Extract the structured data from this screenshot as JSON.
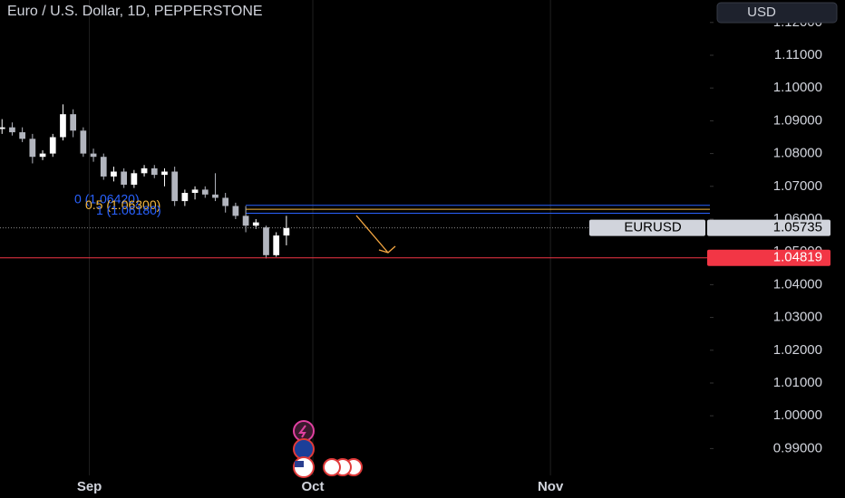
{
  "chart_data": {
    "type": "candlestick",
    "title": "Euro / U.S. Dollar, 1D, PEPPERSTONE",
    "currency": "USD",
    "symbol": "EURUSD",
    "x": [
      0,
      1,
      2,
      3,
      4,
      5,
      6,
      7,
      8,
      9,
      10,
      11,
      12,
      13,
      14,
      15,
      16,
      17,
      18,
      19,
      20,
      21,
      22,
      23,
      24,
      25,
      26,
      27,
      28
    ],
    "open": [
      1.0875,
      1.088,
      1.0865,
      1.0845,
      1.079,
      1.08,
      1.085,
      1.092,
      1.087,
      1.08,
      1.079,
      1.073,
      1.0745,
      1.0705,
      1.074,
      1.0755,
      1.0735,
      1.0745,
      1.0655,
      1.068,
      1.069,
      1.0675,
      1.0665,
      1.064,
      1.061,
      1.058,
      1.0575,
      1.049,
      1.055
    ],
    "high": [
      1.0905,
      1.0895,
      1.088,
      1.086,
      1.081,
      1.086,
      1.095,
      1.0935,
      1.088,
      1.0815,
      1.08,
      1.076,
      1.0755,
      1.075,
      1.0765,
      1.0765,
      1.0755,
      1.076,
      1.069,
      1.07,
      1.07,
      1.074,
      1.068,
      1.065,
      1.064,
      1.06,
      1.058,
      1.056,
      1.061
    ],
    "low": [
      1.086,
      1.0855,
      1.0835,
      1.077,
      1.078,
      1.079,
      1.084,
      1.085,
      1.079,
      1.0775,
      1.072,
      1.0715,
      1.0695,
      1.0695,
      1.073,
      1.0725,
      1.07,
      1.064,
      1.064,
      1.066,
      1.0665,
      1.0655,
      1.062,
      1.06,
      1.056,
      1.057,
      1.048,
      1.0485,
      1.052
    ],
    "close": [
      1.088,
      1.0865,
      1.0845,
      1.079,
      1.08,
      1.085,
      1.092,
      1.087,
      1.08,
      1.079,
      1.073,
      1.0745,
      1.0705,
      1.074,
      1.0755,
      1.0735,
      1.0745,
      1.0655,
      1.068,
      1.069,
      1.0675,
      1.0665,
      1.064,
      1.061,
      1.058,
      1.059,
      1.049,
      1.055,
      1.0573
    ],
    "up_color": "#ffffff",
    "down_color": "#b2b5be",
    "xlim": [
      -0.2,
      69.7
    ],
    "xticks": [
      {
        "value": 8.6,
        "label": "Sep"
      },
      {
        "value": 30.6,
        "label": "Oct"
      },
      {
        "value": 54.0,
        "label": "Nov"
      }
    ],
    "ylim": [
      0.98182,
      1.12685
    ],
    "yticks": [
      {
        "value": 1.12,
        "label": "1.12000"
      },
      {
        "value": 1.11,
        "label": "1.11000"
      },
      {
        "value": 1.1,
        "label": "1.10000"
      },
      {
        "value": 1.09,
        "label": "1.09000"
      },
      {
        "value": 1.08,
        "label": "1.08000"
      },
      {
        "value": 1.07,
        "label": "1.07000"
      },
      {
        "value": 1.06,
        "label": "1.06000"
      },
      {
        "value": 1.05,
        "label": "1.05000"
      },
      {
        "value": 1.04,
        "label": "1.04000"
      },
      {
        "value": 1.03,
        "label": "1.03000"
      },
      {
        "value": 1.02,
        "label": "1.02000"
      },
      {
        "value": 1.01,
        "label": "1.01000"
      },
      {
        "value": 1.0,
        "label": "1.00000"
      },
      {
        "value": 0.99,
        "label": "0.99000"
      }
    ],
    "grid": "x",
    "last_price": {
      "value": 1.05735,
      "label": "1.05735"
    },
    "alert_line": {
      "value": 1.04819,
      "label": "1.04819",
      "color": "#f23645"
    },
    "fib_levels": [
      {
        "value": 1.0642,
        "label": "0 (1.06420)",
        "color": "#2962ff"
      },
      {
        "value": 1.063,
        "label": "0.5 (1.06300)",
        "color": "#f5b942"
      },
      {
        "value": 1.0618,
        "label": "1 (1.06180)",
        "color": "#2962ff"
      }
    ]
  }
}
